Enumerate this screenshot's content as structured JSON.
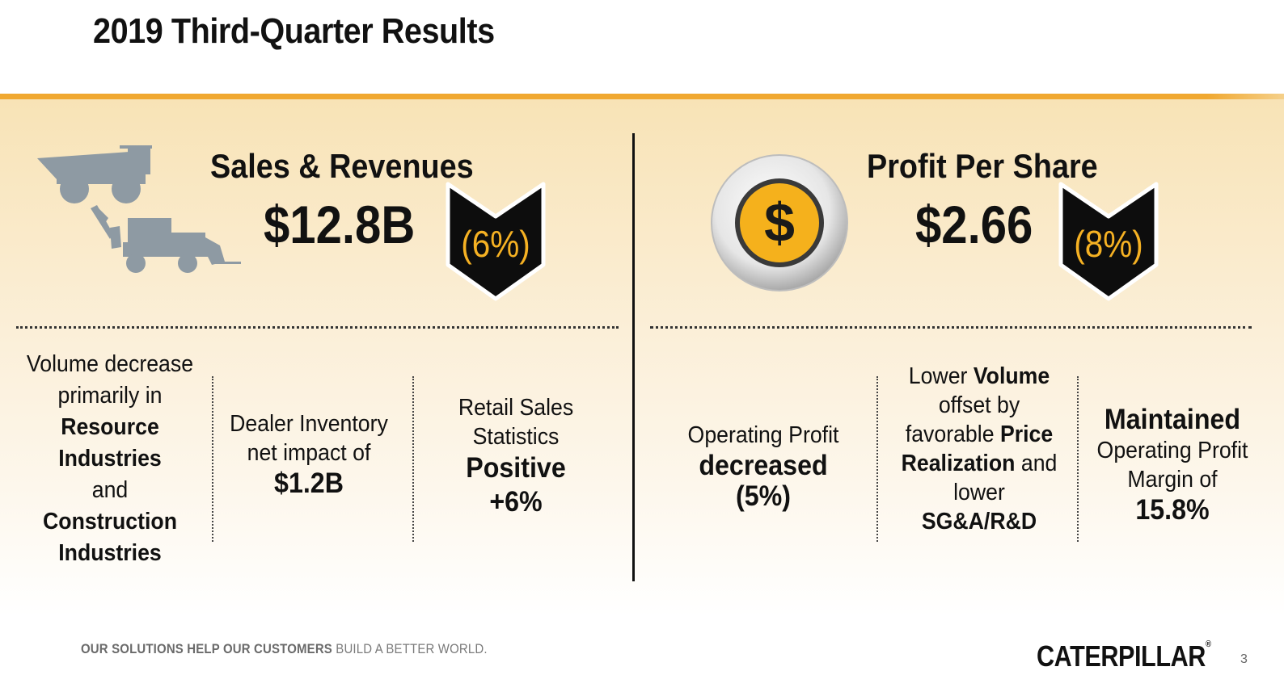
{
  "slide": {
    "title": "2019 Third-Quarter Results",
    "page_number": "3"
  },
  "left": {
    "heading": "Sales & Revenues",
    "value": "$12.8B",
    "change": "(6%)",
    "columns": {
      "c1": {
        "l1": "Volume decrease",
        "l2": "primarily in",
        "l3": "Resource",
        "l4": "Industries",
        "l5": "and",
        "l6": "Construction",
        "l7": "Industries"
      },
      "c2": {
        "l1": "Dealer Inventory",
        "l2": "net impact of",
        "l3": "$1.2B"
      },
      "c3": {
        "l1": "Retail Sales",
        "l2": "Statistics",
        "l3": "Positive",
        "l4": "+6%"
      }
    }
  },
  "right": {
    "heading": "Profit Per Share",
    "value": "$2.66",
    "change": "(8%)",
    "coin_symbol": "$",
    "columns": {
      "c1": {
        "l1": "Operating Profit",
        "l2": "decreased",
        "l3": "(5%)"
      },
      "c2": {
        "l1a": "Lower ",
        "l1b": "Volume",
        "l2": "offset by",
        "l3a": "favorable ",
        "l3b": "Price",
        "l4a": "Realization",
        "l4b": " and",
        "l5": "lower",
        "l6": "SG&A/R&D"
      },
      "c3": {
        "l1": "Maintained",
        "l2": "Operating Profit",
        "l3": "Margin of",
        "l4": "15.8%"
      }
    }
  },
  "footer": {
    "tagline_bold": "OUR SOLUTIONS HELP OUR CUSTOMERS",
    "tagline_rest": " BUILD A BETTER WORLD.",
    "logo_text": "CATERPILLAR",
    "logo_mark": "®"
  },
  "colors": {
    "accent": "#f0a830",
    "change_text": "#f5b123",
    "machine_gray": "#8e9aa3"
  }
}
